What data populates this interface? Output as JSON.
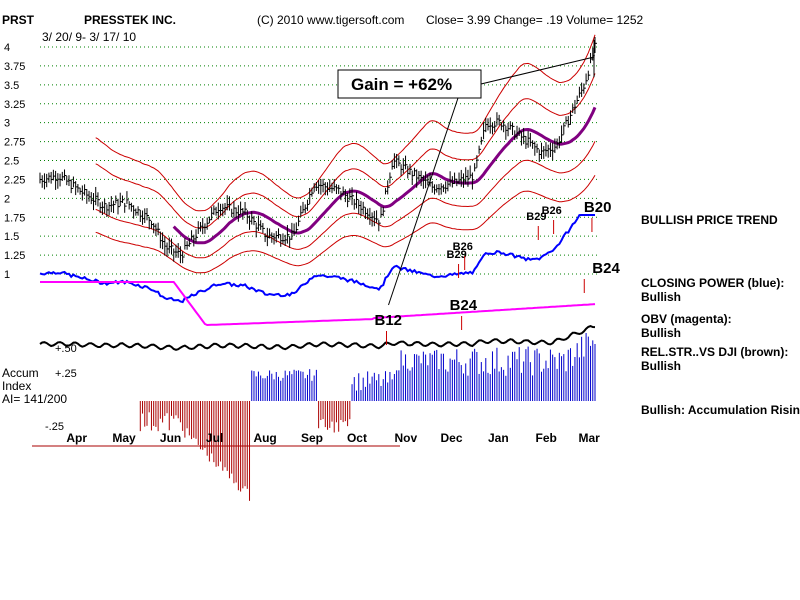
{
  "header": {
    "ticker": "PRST",
    "company": "PRESSTEK INC.",
    "copyright": "(C) 2010 www.tigersoft.com",
    "close_text": "Close=  3.99  Change= .19 Volume= 1252",
    "date_range": "3/ 20/ 9- 3/ 17/ 10"
  },
  "gain_box": {
    "text": "Gain = +62%"
  },
  "side_panel": {
    "trend": "BULLISH PRICE TREND",
    "closing_power_label": "CLOSING POWER (blue):",
    "closing_power_value": "Bullish",
    "obv_label": "OBV (magenta):",
    "obv_value": "Bullish",
    "relstr_label": "REL.STR..VS DJI (brown):",
    "relstr_value": "Bullish",
    "accum_text": "Bullish: Accumulation Rising"
  },
  "accum_panel": {
    "label1": "Accum",
    "label2": "Index",
    "label3": "AI= 141/200"
  },
  "colors": {
    "price": "#000000",
    "bands": "#cc0000",
    "moving_avg": "#800080",
    "closing_power": "#0000ff",
    "obv": "#ff00ff",
    "relstr": "#8b4513",
    "accum_pos": "#0000cc",
    "accum_neg": "#aa0000",
    "grid": "#008000"
  },
  "chart_data": {
    "type": "line",
    "title": "PRESSTEK INC.",
    "period": "3/20/09 - 3/17/10",
    "x_months": [
      "Apr",
      "May",
      "Jun",
      "Jul",
      "Aug",
      "Sep",
      "Oct",
      "Nov",
      "Dec",
      "Jan",
      "Feb",
      "Mar"
    ],
    "y_ticks": [
      "4",
      "3.75",
      "3.5",
      "3.25",
      "3",
      "2.75",
      "2.5",
      "2.25",
      "2",
      "1.75",
      "1.5",
      "1.25",
      "1"
    ],
    "ylim": [
      1,
      4
    ],
    "price_series": {
      "name": "Close",
      "x": [
        "2009-03-20",
        "2009-04-01",
        "2009-04-15",
        "2009-05-01",
        "2009-05-15",
        "2009-06-01",
        "2009-06-10",
        "2009-06-20",
        "2009-07-01",
        "2009-07-15",
        "2009-08-01",
        "2009-08-15",
        "2009-09-01",
        "2009-09-15",
        "2009-10-01",
        "2009-10-15",
        "2009-10-28",
        "2009-11-05",
        "2009-11-20",
        "2009-12-01",
        "2009-12-15",
        "2009-12-28",
        "2010-01-05",
        "2010-01-15",
        "2010-02-01",
        "2010-02-10",
        "2010-02-20",
        "2010-03-01",
        "2010-03-10",
        "2010-03-17"
      ],
      "y": [
        2.25,
        2.3,
        2.1,
        1.9,
        1.95,
        1.7,
        1.35,
        1.25,
        1.55,
        1.9,
        1.8,
        1.5,
        1.5,
        2.2,
        2.1,
        1.9,
        1.7,
        2.5,
        2.3,
        2.15,
        2.2,
        2.3,
        3.0,
        3.0,
        2.75,
        2.6,
        2.7,
        3.1,
        3.5,
        3.99
      ]
    },
    "signals": [
      {
        "label": "B12",
        "x": "2009-11-01"
      },
      {
        "label": "B29",
        "x": "2009-12-18"
      },
      {
        "label": "B26",
        "x": "2009-12-22"
      },
      {
        "label": "B29",
        "x": "2010-02-08"
      },
      {
        "label": "B26",
        "x": "2010-02-18"
      },
      {
        "label": "B20",
        "x": "2010-03-15"
      },
      {
        "label": "B24",
        "x": "2010-03-10"
      },
      {
        "label": "B24",
        "x": "2009-12-20"
      }
    ],
    "indicator_levels": {
      "relstr_label": "+.50",
      "accum_ticks": [
        "+.25",
        "-.25"
      ]
    }
  }
}
